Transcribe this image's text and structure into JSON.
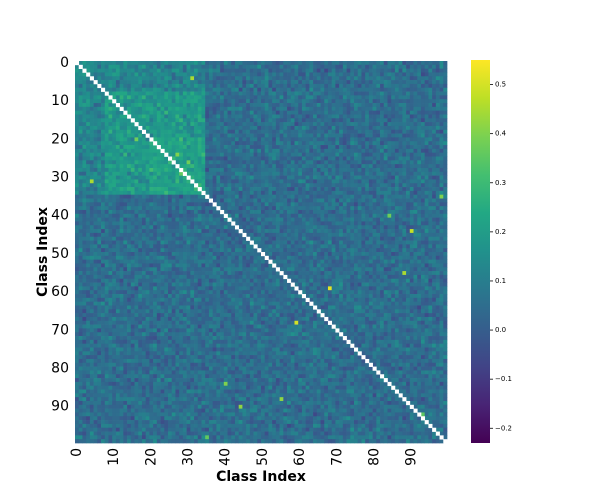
{
  "chart_data": {
    "type": "heatmap",
    "title": "",
    "xlabel": "Class Index",
    "ylabel": "Class Index",
    "n_classes": 100,
    "x_ticks": [
      "0",
      "10",
      "20",
      "30",
      "40",
      "50",
      "60",
      "70",
      "80",
      "90"
    ],
    "y_ticks": [
      "0",
      "10",
      "20",
      "30",
      "40",
      "50",
      "60",
      "70",
      "80",
      "90"
    ],
    "x_tick_values": [
      0,
      10,
      20,
      30,
      40,
      50,
      60,
      70,
      80,
      90
    ],
    "y_tick_values": [
      0,
      10,
      20,
      30,
      40,
      50,
      60,
      70,
      80,
      90
    ],
    "colormap": "viridis",
    "colorbar": {
      "min": -0.23,
      "max": 0.55,
      "ticks": [
        -0.2,
        -0.1,
        0.0,
        0.1,
        0.2,
        0.3,
        0.4,
        0.5
      ],
      "tick_labels": [
        "−0.2",
        "−0.1",
        "0.0",
        "0.1",
        "0.2",
        "0.3",
        "0.4",
        "0.5"
      ]
    },
    "diagonal": "masked (white)",
    "cluster_block": {
      "from_class": 0,
      "to_class": 34,
      "typical_value": 0.18
    },
    "background_typical_value": 0.05,
    "highlight_cells": [
      {
        "row": 4,
        "col": 31,
        "value": 0.45
      },
      {
        "row": 31,
        "col": 4,
        "value": 0.45
      },
      {
        "row": 20,
        "col": 16,
        "value": 0.38
      },
      {
        "row": 24,
        "col": 27,
        "value": 0.4
      },
      {
        "row": 26,
        "col": 30,
        "value": 0.38
      },
      {
        "row": 29,
        "col": 28,
        "value": 0.36
      },
      {
        "row": 35,
        "col": 98,
        "value": 0.4
      },
      {
        "row": 40,
        "col": 84,
        "value": 0.38
      },
      {
        "row": 44,
        "col": 90,
        "value": 0.48
      },
      {
        "row": 55,
        "col": 88,
        "value": 0.45
      },
      {
        "row": 59,
        "col": 68,
        "value": 0.52
      },
      {
        "row": 68,
        "col": 59,
        "value": 0.5
      },
      {
        "row": 84,
        "col": 40,
        "value": 0.4
      },
      {
        "row": 88,
        "col": 55,
        "value": 0.42
      },
      {
        "row": 90,
        "col": 44,
        "value": 0.42
      },
      {
        "row": 98,
        "col": 35,
        "value": 0.36
      },
      {
        "row": 92,
        "col": 93,
        "value": 0.35
      }
    ]
  }
}
